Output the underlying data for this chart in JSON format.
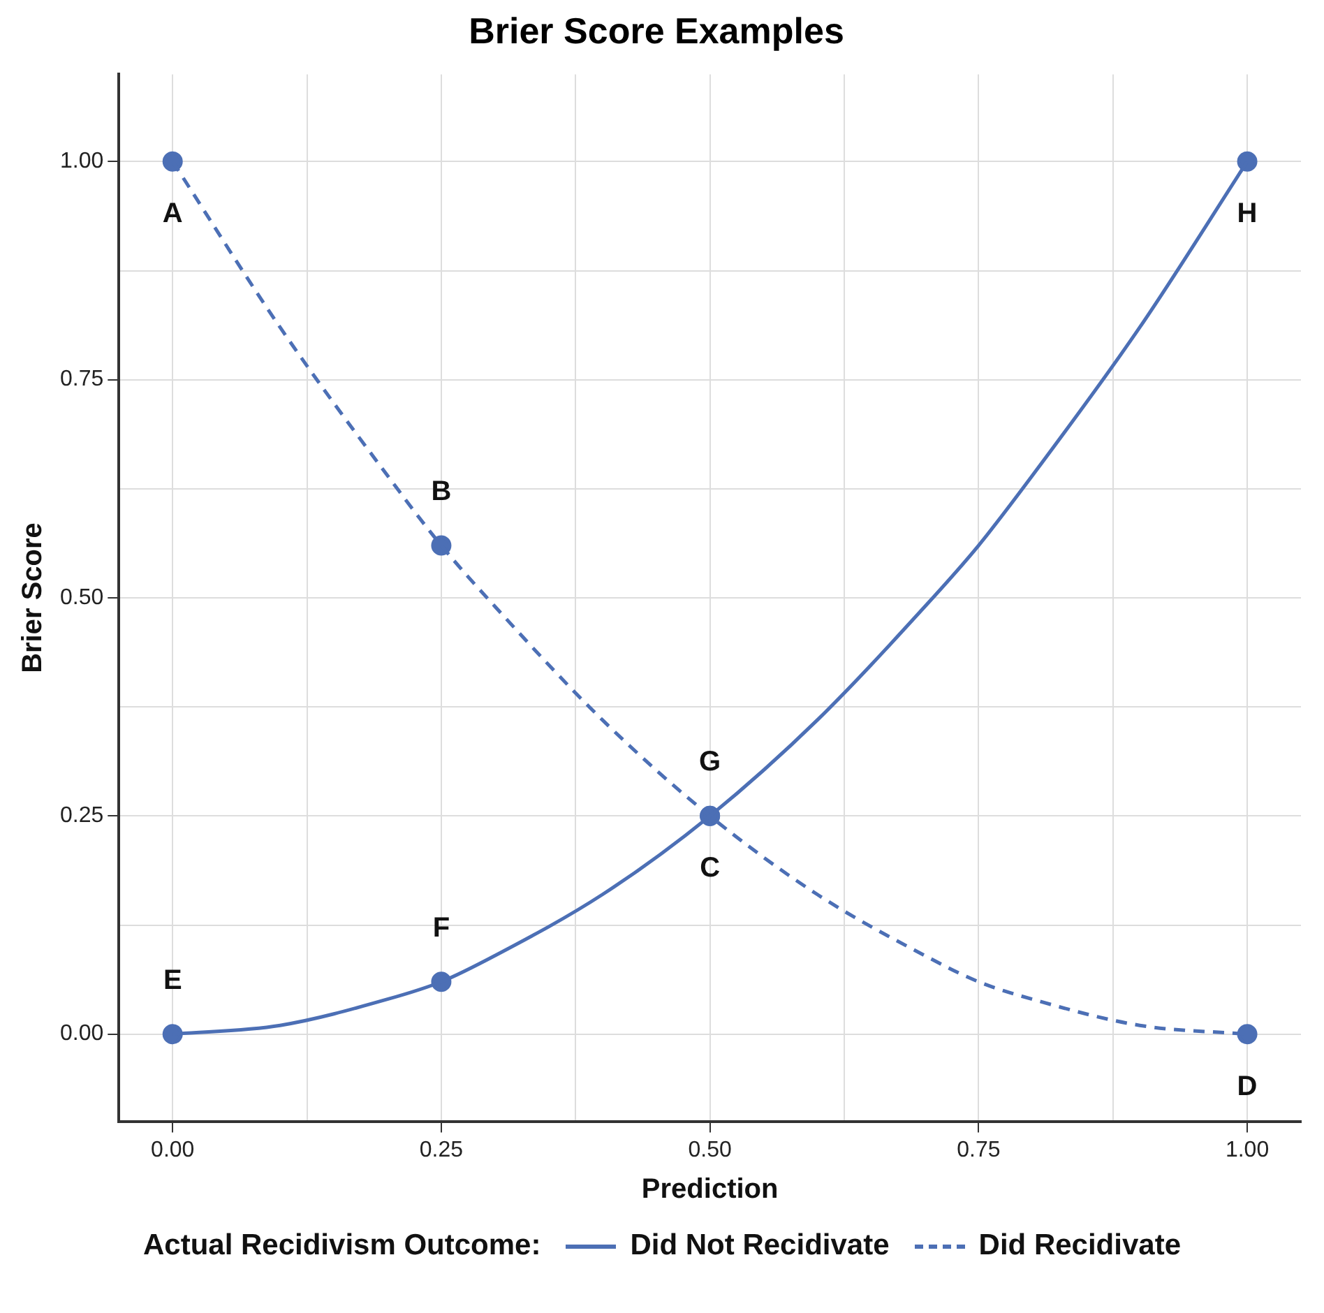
{
  "chart_data": {
    "type": "line",
    "title": "Brier Score Examples",
    "xlabel": "Prediction",
    "ylabel": "Brier Score",
    "legend_title": "Actual Recidivism Outcome:",
    "series": [
      {
        "name": "Did Not Recidivate",
        "color": "#4c6fb5",
        "line_style": "solid",
        "marker": "none",
        "x": [
          0,
          0.1,
          0.2,
          0.25,
          0.3,
          0.4,
          0.5,
          0.6,
          0.7,
          0.75,
          0.8,
          0.9,
          1
        ],
        "values": [
          0,
          0.01,
          0.04,
          0.06,
          0.09,
          0.16,
          0.25,
          0.36,
          0.49,
          0.56,
          0.64,
          0.81,
          1
        ]
      },
      {
        "name": "Did Recidivate",
        "color": "#4c6fb5",
        "line_style": "dashed",
        "marker": "none",
        "x": [
          0,
          0.1,
          0.2,
          0.25,
          0.3,
          0.4,
          0.5,
          0.6,
          0.7,
          0.75,
          0.8,
          0.9,
          1
        ],
        "values": [
          1,
          0.81,
          0.64,
          0.56,
          0.49,
          0.36,
          0.25,
          0.16,
          0.09,
          0.06,
          0.04,
          0.01,
          0
        ]
      },
      {
        "type": "scatter",
        "color": "#4c6fb5",
        "marker": "circle",
        "x": [
          0,
          0.25,
          0.5,
          1
        ],
        "values": [
          0,
          0.06,
          0.25,
          1
        ]
      },
      {
        "type": "scatter",
        "color": "#4c6fb5",
        "marker": "circle",
        "x": [
          0,
          0.25,
          0.5,
          1
        ],
        "values": [
          1,
          0.56,
          0.25,
          0
        ]
      }
    ],
    "annotations": [
      {
        "text": "A",
        "x": 0,
        "y": 1
      },
      {
        "text": "B",
        "x": 0.25,
        "y": 0.56
      },
      {
        "text": "C",
        "x": 0.5,
        "y": 0.25
      },
      {
        "text": "D",
        "x": 1,
        "y": 0
      },
      {
        "text": "E",
        "x": 0,
        "y": 0
      },
      {
        "text": "F",
        "x": 0.25,
        "y": 0.06
      },
      {
        "text": "G",
        "x": 0.5,
        "y": 0.25
      },
      {
        "text": "H",
        "x": 1,
        "y": 1
      }
    ],
    "xlim": [
      -0.05,
      1.05
    ],
    "xticks": [
      {
        "value": 0,
        "label": "0.00"
      },
      {
        "value": 0.125,
        "label": null
      },
      {
        "value": 0.25,
        "label": "0.25"
      },
      {
        "value": 0.375,
        "label": null
      },
      {
        "value": 0.5,
        "label": "0.50"
      },
      {
        "value": 0.625,
        "label": null
      },
      {
        "value": 0.75,
        "label": "0.75"
      },
      {
        "value": 0.875,
        "label": null
      },
      {
        "value": 1,
        "label": "1.00"
      }
    ],
    "ylim": [
      -0.1,
      1.1
    ],
    "yticks": [
      {
        "value": 0,
        "label": "0.00"
      },
      {
        "value": 0.125,
        "label": null
      },
      {
        "value": 0.25,
        "label": "0.25"
      },
      {
        "value": 0.375,
        "label": null
      },
      {
        "value": 0.5,
        "label": "0.50"
      },
      {
        "value": 0.625,
        "label": null
      },
      {
        "value": 0.75,
        "label": "0.75"
      },
      {
        "value": 0.875,
        "label": null
      },
      {
        "value": 1,
        "label": "1.00"
      }
    ],
    "grid": true,
    "legend": "bottom"
  }
}
